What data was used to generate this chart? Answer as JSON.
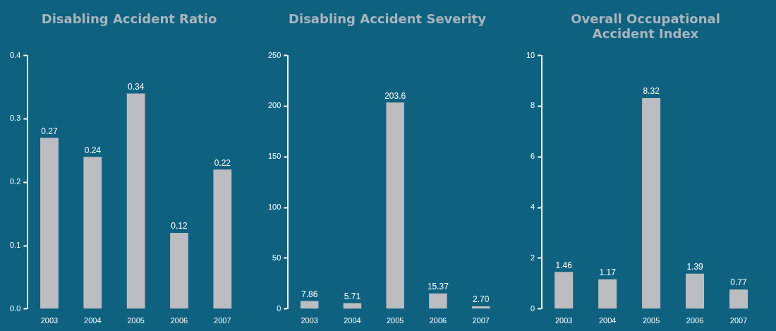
{
  "chart_data": [
    {
      "type": "bar",
      "title": "Disabling Accident Ratio",
      "categories": [
        "2003",
        "2004",
        "2005",
        "2006",
        "2007"
      ],
      "values": [
        0.27,
        0.24,
        0.34,
        0.12,
        0.22
      ],
      "value_labels": [
        "0.27",
        "0.24",
        "0.34",
        "0.12",
        "0.22"
      ],
      "color": "#bcbdc0",
      "ylim": [
        0,
        0.4
      ],
      "yticks": [
        {
          "value": 0,
          "label": "0.0"
        },
        0.1,
        0.2,
        0.3,
        0.4
      ],
      "legend": false
    },
    {
      "type": "bar",
      "title": "Disabling Accident Severity",
      "categories": [
        "2003",
        "2004",
        "2005",
        "2006",
        "2007"
      ],
      "values": [
        7.86,
        5.71,
        203.6,
        15.37,
        2.7
      ],
      "value_labels": [
        "7.86",
        "5.71",
        "203.6",
        "15.37",
        "2.70"
      ],
      "color": "#bcbdc0",
      "ylim": [
        0,
        250
      ],
      "yticks": [
        0,
        50,
        100,
        150,
        200,
        250
      ],
      "legend": false
    },
    {
      "type": "bar",
      "title": "Overall Occupational\nAccident Index",
      "categories": [
        "2003",
        "2004",
        "2005",
        "2006",
        "2007"
      ],
      "values": [
        1.46,
        1.17,
        8.32,
        1.39,
        0.77
      ],
      "value_labels": [
        "1.46",
        "1.17",
        "8.32",
        "1.39",
        "0.77"
      ],
      "color": "#bcbdc0",
      "ylim": [
        0,
        10
      ],
      "yticks": [
        0,
        2,
        4,
        6,
        8,
        10
      ],
      "legend": false
    }
  ]
}
